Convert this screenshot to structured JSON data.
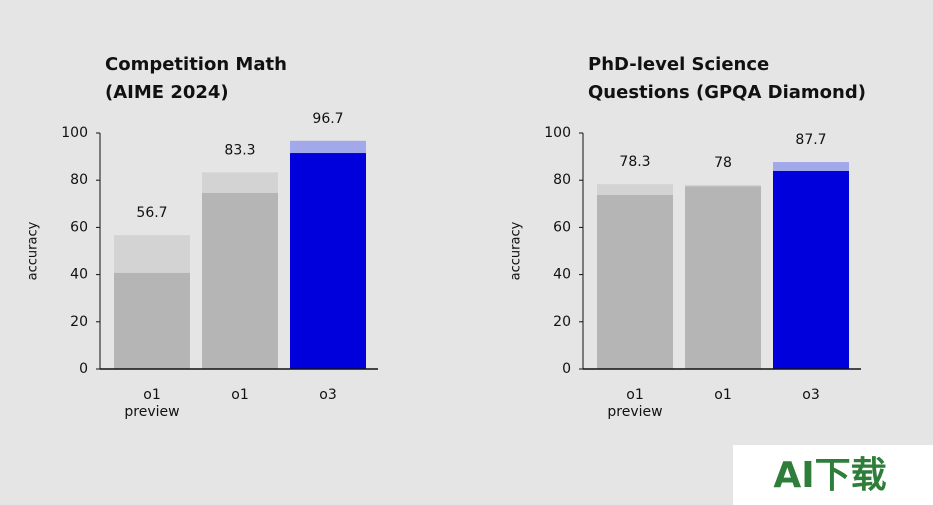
{
  "chart_data": [
    {
      "type": "bar",
      "title": [
        "Competition Math",
        "(AIME 2024)"
      ],
      "ylabel": "accuracy",
      "categories": [
        [
          "o1",
          "preview"
        ],
        [
          "o1"
        ],
        [
          "o3"
        ]
      ],
      "series": [
        {
          "colors": [
            "#d3d3d3",
            "#d3d3d3",
            "#a2a9ea"
          ],
          "values": [
            56.7,
            83.3,
            96.7
          ]
        },
        {
          "colors": [
            "#b5b5b5",
            "#b5b5b5",
            "#0000dc"
          ],
          "values": [
            40.7,
            74.6,
            91.5
          ]
        }
      ],
      "ylim": [
        0,
        100
      ],
      "yticks": [
        0,
        20,
        40,
        60,
        80,
        100
      ]
    },
    {
      "type": "bar",
      "title": [
        "PhD-level Science",
        "Questions (GPQA Diamond)"
      ],
      "ylabel": "accuracy",
      "categories": [
        [
          "o1",
          "preview"
        ],
        [
          "o1"
        ],
        [
          "o3"
        ]
      ],
      "series": [
        {
          "colors": [
            "#d3d3d3",
            "#d3d3d3",
            "#a2a9ea"
          ],
          "values": [
            78.3,
            78.0,
            87.7
          ]
        },
        {
          "colors": [
            "#b5b5b5",
            "#b5b5b5",
            "#0000dc"
          ],
          "values": [
            73.7,
            77.4,
            83.9
          ]
        }
      ],
      "ylim": [
        0,
        100
      ],
      "yticks": [
        0,
        20,
        40,
        60,
        80,
        100
      ]
    }
  ],
  "watermark": "AI下载"
}
